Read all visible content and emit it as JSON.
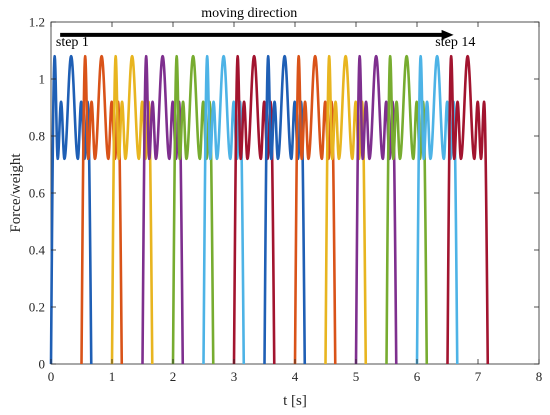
{
  "chart_data": {
    "type": "line",
    "xlabel": "t [s]",
    "ylabel": "Force/weight",
    "xlim": [
      0,
      8
    ],
    "ylim": [
      0,
      1.2
    ],
    "x_ticks": [
      0,
      1,
      2,
      3,
      4,
      5,
      6,
      7,
      8
    ],
    "y_ticks": [
      0,
      0.2,
      0.4,
      0.6,
      0.8,
      1.0,
      1.2
    ],
    "x_tick_labels": [
      "0",
      "1",
      "2",
      "3",
      "4",
      "5",
      "6",
      "7",
      "8"
    ],
    "y_tick_labels": [
      "0",
      "0.2",
      "0.4",
      "0.6",
      "0.8",
      "1",
      "1.2"
    ],
    "grid": false,
    "legend": "none",
    "step_shape": {
      "duration_s": 0.66,
      "first_peak": 1.08,
      "valley": 0.72,
      "second_peak": 0.92
    },
    "step_starts_s": [
      0.0,
      0.5,
      1.0,
      1.5,
      2.0,
      2.5,
      3.0,
      3.5,
      4.0,
      4.5,
      5.0,
      5.5,
      6.0,
      6.5
    ],
    "colors": [
      "#1f5fb5",
      "#d95319",
      "#e8b520",
      "#7e2f8e",
      "#77ac30",
      "#4db3e6",
      "#a2142f",
      "#1f5fb5",
      "#d95319",
      "#e8b520",
      "#7e2f8e",
      "#77ac30",
      "#4db3e6",
      "#a2142f"
    ],
    "annotations": {
      "direction_label": "moving direction",
      "step_start_label": "step 1",
      "step_end_label": "step 14"
    },
    "arrow": {
      "from_x": 0.15,
      "to_x": 6.6,
      "y": 1.155
    }
  }
}
